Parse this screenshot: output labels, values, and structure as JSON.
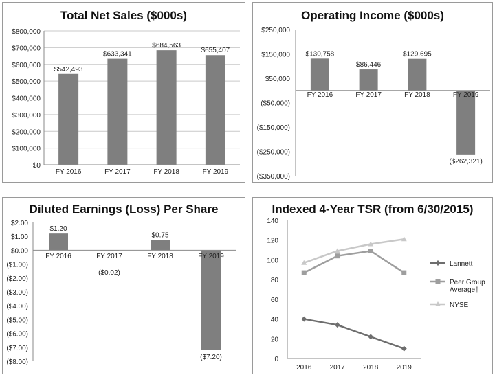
{
  "chart_data": [
    {
      "id": "sales",
      "type": "bar",
      "title": "Total Net Sales ($000s)",
      "categories": [
        "FY 2016",
        "FY 2017",
        "FY 2018",
        "FY 2019"
      ],
      "values": [
        542493,
        633341,
        684563,
        655407
      ],
      "data_labels": [
        "$542,493",
        "$633,341",
        "$684,563",
        "$655,407"
      ],
      "ylim": [
        0,
        800000
      ],
      "yticks": [
        0,
        100000,
        200000,
        300000,
        400000,
        500000,
        600000,
        700000,
        800000
      ],
      "ytick_labels": [
        "$0",
        "$100,000",
        "$200,000",
        "$300,000",
        "$400,000",
        "$500,000",
        "$600,000",
        "$700,000",
        "$800,000"
      ],
      "grid": true,
      "bar_color": "#7f7f7f"
    },
    {
      "id": "opinc",
      "type": "bar",
      "title": "Operating Income ($000s)",
      "categories": [
        "FY 2016",
        "FY 2017",
        "FY 2018",
        "FY 2019"
      ],
      "values": [
        130758,
        86446,
        129695,
        -262321
      ],
      "data_labels": [
        "$130,758",
        "$86,446",
        "$129,695",
        "($262,321)"
      ],
      "ylim": [
        -350000,
        250000
      ],
      "yticks": [
        250000,
        150000,
        50000,
        -50000,
        -150000,
        -250000,
        -350000
      ],
      "ytick_labels": [
        "$250,000",
        "$150,000",
        "$50,000",
        "($50,000)",
        "($150,000)",
        "($250,000)",
        "($350,000)"
      ],
      "grid": false,
      "bar_color": "#7f7f7f"
    },
    {
      "id": "eps",
      "type": "bar",
      "title": "Diluted Earnings (Loss) Per Share",
      "categories": [
        "FY 2016",
        "FY 2017",
        "FY 2018",
        "FY 2019"
      ],
      "values": [
        1.2,
        -0.02,
        0.75,
        -7.2
      ],
      "data_labels": [
        "$1.20",
        "($0.02)",
        "$0.75",
        "($7.20)"
      ],
      "ylim": [
        -8,
        2
      ],
      "yticks": [
        2,
        1,
        0,
        -1,
        -2,
        -3,
        -4,
        -5,
        -6,
        -7,
        -8
      ],
      "ytick_labels": [
        "$2.00",
        "$1.00",
        "$0.00",
        "($1.00)",
        "($2.00)",
        "($3.00)",
        "($4.00)",
        "($5.00)",
        "($6.00)",
        "($7.00)",
        "($8.00)"
      ],
      "grid": false,
      "bar_color": "#7f7f7f"
    },
    {
      "id": "tsr",
      "type": "line",
      "title": "Indexed 4-Year TSR (from 6/30/2015)",
      "x": [
        "2016",
        "2017",
        "2018",
        "2019"
      ],
      "ylim": [
        0,
        140
      ],
      "yticks": [
        0,
        20,
        40,
        60,
        80,
        100,
        120,
        140
      ],
      "ytick_labels": [
        "0",
        "20",
        "40",
        "60",
        "80",
        "100",
        "120",
        "140"
      ],
      "series": [
        {
          "name": "Lannett",
          "values": [
            40,
            34,
            22,
            10
          ],
          "color": "#6e6e6e",
          "marker": "diamond"
        },
        {
          "name": "Peer Group Average†",
          "legend_lines": [
            "Peer Group",
            "Average†"
          ],
          "values": [
            87,
            104,
            109,
            87
          ],
          "color": "#9e9e9e",
          "marker": "square"
        },
        {
          "name": "NYSE",
          "values": [
            97,
            109,
            116,
            121
          ],
          "color": "#c8c8c8",
          "marker": "triangle"
        }
      ]
    }
  ]
}
